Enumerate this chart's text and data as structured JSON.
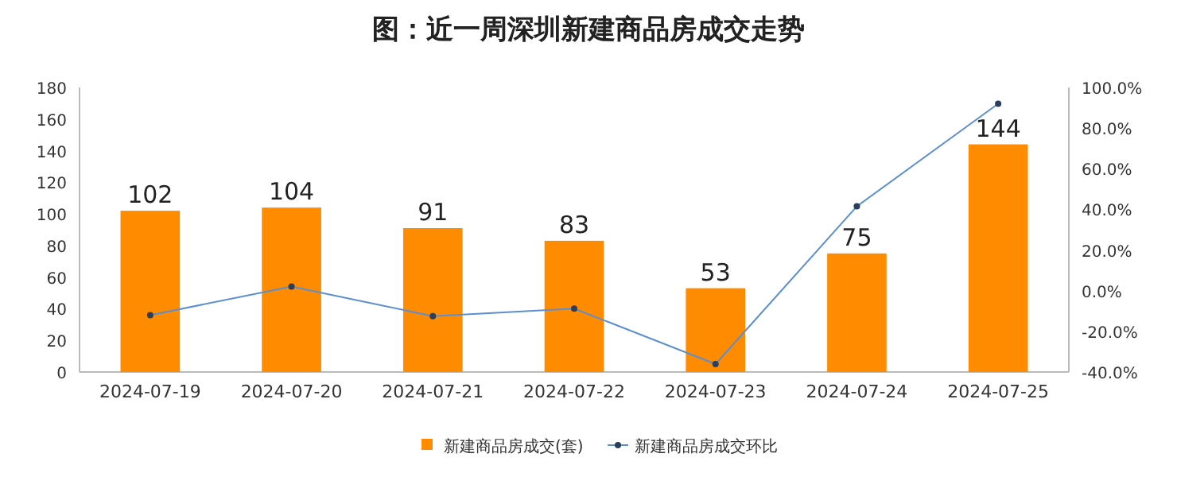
{
  "chart_data": {
    "type": "bar",
    "title": "图：近一周深圳新建商品房成交走势",
    "categories": [
      "2024-07-19",
      "2024-07-20",
      "2024-07-21",
      "2024-07-22",
      "2024-07-23",
      "2024-07-24",
      "2024-07-25"
    ],
    "series": [
      {
        "name": "新建商品房成交(套)",
        "color": "#ff8c00",
        "values": [
          102,
          104,
          91,
          83,
          53,
          75,
          144
        ],
        "value_labels": [
          "102",
          "104",
          "91",
          "83",
          "53",
          "75",
          "144"
        ]
      },
      {
        "name": "新建商品房成交环比",
        "type": "line",
        "axis": "y2",
        "color": "#5b8fd0",
        "values": [
          -12,
          2,
          -12.5,
          -8.8,
          -36.1,
          41.5,
          92
        ]
      }
    ],
    "ylim": [
      0,
      180
    ],
    "yticks": [
      0,
      20,
      40,
      60,
      80,
      100,
      120,
      140,
      160,
      180
    ],
    "y2lim": [
      -40,
      100
    ],
    "y2ticks": [
      {
        "value": -40,
        "label": "-40.0%"
      },
      {
        "value": -20,
        "label": "-20.0%"
      },
      {
        "value": 0,
        "label": "0.0%"
      },
      {
        "value": 20,
        "label": "20.0%"
      },
      {
        "value": 40,
        "label": "40.0%"
      },
      {
        "value": 60,
        "label": "60.0%"
      },
      {
        "value": 80,
        "label": "80.0%"
      },
      {
        "value": 100,
        "label": "100.0%"
      }
    ],
    "legend": "bottom",
    "marker": "circle",
    "grid": false
  }
}
